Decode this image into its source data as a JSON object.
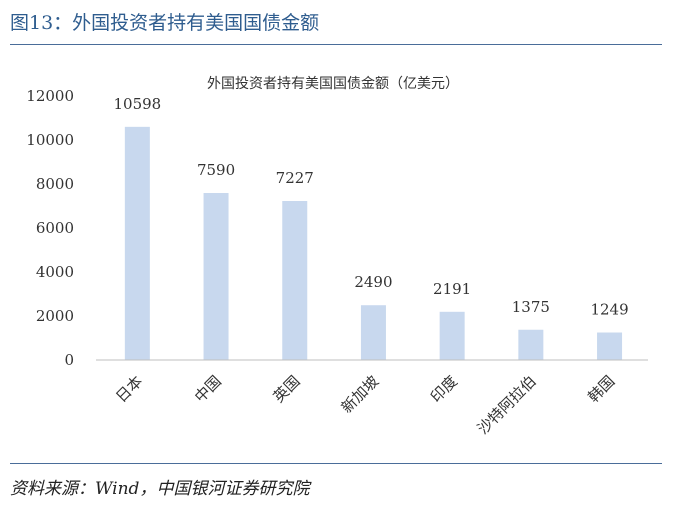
{
  "figure": {
    "title": "图13：外国投资者持有美国国债金额",
    "source": "资料来源：Wind，中国银河证券研究院"
  },
  "chart_data": {
    "type": "bar",
    "title": "外国投资者持有美国国债金额（亿美元）",
    "xlabel": "",
    "ylabel": "",
    "categories": [
      "日本",
      "中国",
      "英国",
      "新加坡",
      "印度",
      "沙特阿拉伯",
      "韩国"
    ],
    "values": [
      10598,
      7590,
      7227,
      2490,
      2191,
      1375,
      1249
    ],
    "ylim": [
      0,
      12000
    ],
    "yticks": [
      0,
      2000,
      4000,
      6000,
      8000,
      10000,
      12000
    ],
    "grid": false,
    "legend": "none",
    "bar_color": "#c8d8ee"
  }
}
